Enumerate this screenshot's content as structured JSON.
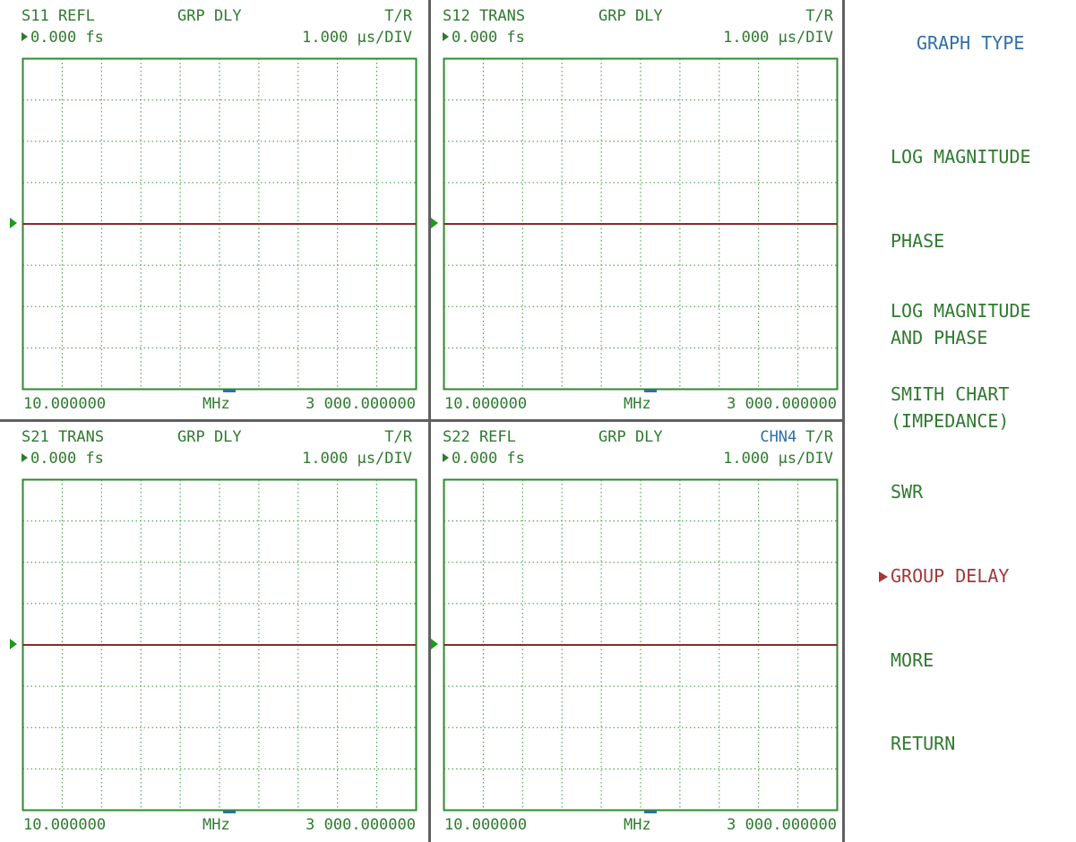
{
  "panels": [
    {
      "param": "S11 REFL",
      "format": "GRP DLY",
      "channel": "",
      "mode": "T/R",
      "ref_value": "0.000 fs",
      "scale": "1.000 µs/DIV",
      "start": "10.000000",
      "unit": "MHz",
      "stop": "3 000.000000",
      "trace_color": "#8b2a2a"
    },
    {
      "param": "S12 TRANS",
      "format": "GRP DLY",
      "channel": "",
      "mode": "T/R",
      "ref_value": "0.000 fs",
      "scale": "1.000 µs/DIV",
      "start": "10.000000",
      "unit": "MHz",
      "stop": "3 000.000000",
      "trace_color": "#8b2a2a"
    },
    {
      "param": "S21 TRANS",
      "format": "GRP DLY",
      "channel": "",
      "mode": "T/R",
      "ref_value": "0.000 fs",
      "scale": "1.000 µs/DIV",
      "start": "10.000000",
      "unit": "MHz",
      "stop": "3 000.000000",
      "trace_color": "#8b2a2a"
    },
    {
      "param": "S22 REFL",
      "format": "GRP DLY",
      "channel": "CHN4",
      "mode": "T/R",
      "ref_value": "0.000 fs",
      "scale": "1.000 µs/DIV",
      "start": "10.000000",
      "unit": "MHz",
      "stop": "3 000.000000",
      "trace_color": "#8b2a2a"
    }
  ],
  "menu": {
    "title": "GRAPH TYPE",
    "items": [
      {
        "lines": [
          "LOG MAGNITUDE"
        ],
        "active": false
      },
      {
        "lines": [
          "PHASE"
        ],
        "active": false
      },
      {
        "lines": [
          "LOG MAGNITUDE",
          "AND PHASE"
        ],
        "active": false
      },
      {
        "lines": [
          "SMITH CHART",
          "(IMPEDANCE)"
        ],
        "active": false
      },
      {
        "lines": [
          "SWR"
        ],
        "active": false
      },
      {
        "lines": [
          "GROUP DELAY"
        ],
        "active": true
      },
      {
        "lines": [
          "MORE"
        ],
        "active": false
      },
      {
        "lines": [
          "RETURN"
        ],
        "active": false
      }
    ]
  },
  "colors": {
    "grid": "#2f9a2f",
    "border": "#2f8a2f",
    "text": "#2f7a2f",
    "accent_blue": "#2f6fa8",
    "active": "#a23838"
  },
  "chart_data": [
    {
      "type": "line",
      "title": "S11 REFL GRP DLY",
      "x": [
        10.0,
        3000.0
      ],
      "series": [
        {
          "values": [
            0,
            0
          ]
        }
      ],
      "xlim": [
        10.0,
        3000.0
      ],
      "ylim": [
        -4,
        4
      ],
      "grid": true
    },
    {
      "type": "line",
      "title": "S12 TRANS GRP DLY",
      "x": [
        10.0,
        3000.0
      ],
      "series": [
        {
          "values": [
            0,
            0
          ]
        }
      ],
      "xlim": [
        10.0,
        3000.0
      ],
      "ylim": [
        -4,
        4
      ],
      "grid": true
    },
    {
      "type": "line",
      "title": "S21 TRANS GRP DLY",
      "x": [
        10.0,
        3000.0
      ],
      "series": [
        {
          "values": [
            0,
            0
          ]
        }
      ],
      "xlim": [
        10.0,
        3000.0
      ],
      "ylim": [
        -4,
        4
      ],
      "grid": true
    },
    {
      "type": "line",
      "title": "S22 REFL GRP DLY",
      "x": [
        10.0,
        3000.0
      ],
      "series": [
        {
          "values": [
            0,
            0
          ]
        }
      ],
      "xlim": [
        10.0,
        3000.0
      ],
      "ylim": [
        -4,
        4
      ],
      "grid": true
    }
  ]
}
